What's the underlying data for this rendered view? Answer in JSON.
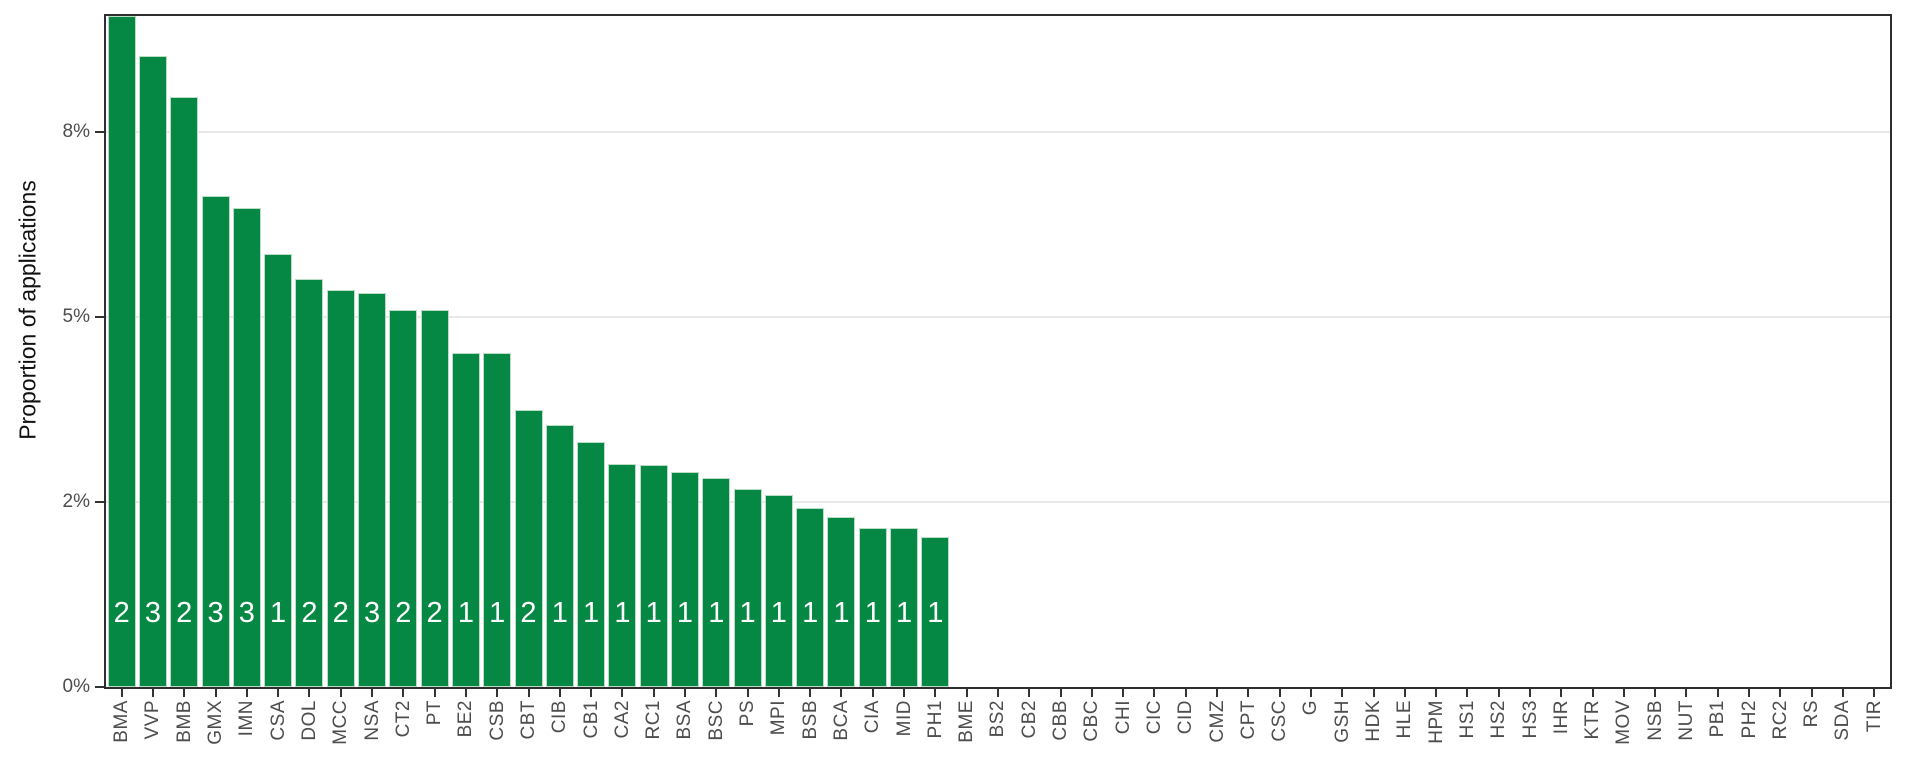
{
  "chart_data": {
    "type": "bar",
    "title": "",
    "xlabel": "",
    "ylabel": "Proportion of applications",
    "value_unit": "percent",
    "ylim": [
      0,
      9.07
    ],
    "grid": "horizontal major gridlines only",
    "legend": "none",
    "yticks": [
      {
        "label": "0%",
        "value": 0
      },
      {
        "label": "2%",
        "value": 2.5
      },
      {
        "label": "5%",
        "value": 5
      },
      {
        "label": "8%",
        "value": 7.5
      }
    ],
    "bars": [
      {
        "category": "BMA",
        "value": 9.07,
        "count_label": "2"
      },
      {
        "category": "VVP",
        "value": 8.53,
        "count_label": "3"
      },
      {
        "category": "BMB",
        "value": 7.97,
        "count_label": "2"
      },
      {
        "category": "GMX",
        "value": 6.64,
        "count_label": "3"
      },
      {
        "category": "IMN",
        "value": 6.47,
        "count_label": "3"
      },
      {
        "category": "CSA",
        "value": 5.85,
        "count_label": "1"
      },
      {
        "category": "DOL",
        "value": 5.51,
        "count_label": "2"
      },
      {
        "category": "MCC",
        "value": 5.36,
        "count_label": "2"
      },
      {
        "category": "NSA",
        "value": 5.32,
        "count_label": "3"
      },
      {
        "category": "CT2",
        "value": 5.09,
        "count_label": "2"
      },
      {
        "category": "PT",
        "value": 5.09,
        "count_label": "2"
      },
      {
        "category": "BE2",
        "value": 4.51,
        "count_label": "1"
      },
      {
        "category": "CSB",
        "value": 4.51,
        "count_label": "1"
      },
      {
        "category": "CBT",
        "value": 3.74,
        "count_label": "2"
      },
      {
        "category": "CIB",
        "value": 3.54,
        "count_label": "1"
      },
      {
        "category": "CB1",
        "value": 3.31,
        "count_label": "1"
      },
      {
        "category": "CA2",
        "value": 3.01,
        "count_label": "1"
      },
      {
        "category": "RC1",
        "value": 3.0,
        "count_label": "1"
      },
      {
        "category": "BSA",
        "value": 2.91,
        "count_label": "1"
      },
      {
        "category": "BSC",
        "value": 2.82,
        "count_label": "1"
      },
      {
        "category": "PS",
        "value": 2.68,
        "count_label": "1"
      },
      {
        "category": "MPI",
        "value": 2.59,
        "count_label": "1"
      },
      {
        "category": "BSB",
        "value": 2.42,
        "count_label": "1"
      },
      {
        "category": "BCA",
        "value": 2.3,
        "count_label": "1"
      },
      {
        "category": "CIA",
        "value": 2.15,
        "count_label": "1"
      },
      {
        "category": "MID",
        "value": 2.15,
        "count_label": "1"
      },
      {
        "category": "PH1",
        "value": 2.03,
        "count_label": "1"
      },
      {
        "category": "BME",
        "value": 0,
        "count_label": ""
      },
      {
        "category": "BS2",
        "value": 0,
        "count_label": ""
      },
      {
        "category": "CB2",
        "value": 0,
        "count_label": ""
      },
      {
        "category": "CBB",
        "value": 0,
        "count_label": ""
      },
      {
        "category": "CBC",
        "value": 0,
        "count_label": ""
      },
      {
        "category": "CHI",
        "value": 0,
        "count_label": ""
      },
      {
        "category": "CIC",
        "value": 0,
        "count_label": ""
      },
      {
        "category": "CID",
        "value": 0,
        "count_label": ""
      },
      {
        "category": "CMZ",
        "value": 0,
        "count_label": ""
      },
      {
        "category": "CPT",
        "value": 0,
        "count_label": ""
      },
      {
        "category": "CSC",
        "value": 0,
        "count_label": ""
      },
      {
        "category": "G",
        "value": 0,
        "count_label": ""
      },
      {
        "category": "GSH",
        "value": 0,
        "count_label": ""
      },
      {
        "category": "HDK",
        "value": 0,
        "count_label": ""
      },
      {
        "category": "HLE",
        "value": 0,
        "count_label": ""
      },
      {
        "category": "HPM",
        "value": 0,
        "count_label": ""
      },
      {
        "category": "HS1",
        "value": 0,
        "count_label": ""
      },
      {
        "category": "HS2",
        "value": 0,
        "count_label": ""
      },
      {
        "category": "HS3",
        "value": 0,
        "count_label": ""
      },
      {
        "category": "IHR",
        "value": 0,
        "count_label": ""
      },
      {
        "category": "KTR",
        "value": 0,
        "count_label": ""
      },
      {
        "category": "MOV",
        "value": 0,
        "count_label": ""
      },
      {
        "category": "NSB",
        "value": 0,
        "count_label": ""
      },
      {
        "category": "NUT",
        "value": 0,
        "count_label": ""
      },
      {
        "category": "PB1",
        "value": 0,
        "count_label": ""
      },
      {
        "category": "PH2",
        "value": 0,
        "count_label": ""
      },
      {
        "category": "RC2",
        "value": 0,
        "count_label": ""
      },
      {
        "category": "RS",
        "value": 0,
        "count_label": ""
      },
      {
        "category": "SDA",
        "value": 0,
        "count_label": ""
      },
      {
        "category": "TIR",
        "value": 0,
        "count_label": ""
      }
    ],
    "colors": {
      "bar_fill": "#068845",
      "bar_edge": "#bcdcc6",
      "bar_count_text": "#ffffff",
      "gridline": "#e9e9e9",
      "panel_border": "#2e2e2e",
      "tick_mark": "#333333",
      "axis_tick_text": "#4d4d4d",
      "axis_title_text": "#111111",
      "background": "#ffffff"
    }
  }
}
